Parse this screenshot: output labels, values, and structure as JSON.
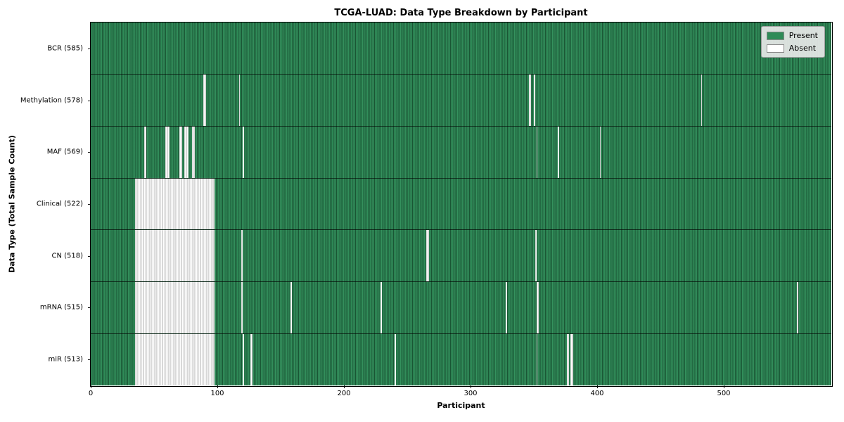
{
  "chart_data": {
    "type": "heatmap",
    "title": "TCGA-LUAD: Data Type Breakdown by Participant",
    "xlabel": "Participant",
    "ylabel": "Data Type (Total Sample Count)",
    "n_participants": 585,
    "x_ticks": [
      0,
      100,
      200,
      300,
      400,
      500
    ],
    "colors": {
      "present": "#2e8b57",
      "absent": "#ffffff"
    },
    "legend": [
      {
        "label": "Present",
        "color": "#2e8b57"
      },
      {
        "label": "Absent",
        "color": "#ffffff"
      }
    ],
    "legend_position": "upper right",
    "rows": [
      {
        "label": "BCR (585)",
        "data_type": "BCR",
        "count": 585,
        "absent_runs": []
      },
      {
        "label": "Methylation (578)",
        "data_type": "Methylation",
        "count": 578,
        "absent_runs": [
          [
            89,
            2
          ],
          [
            117,
            1
          ],
          [
            346,
            2
          ],
          [
            350,
            1
          ],
          [
            482,
            1
          ]
        ]
      },
      {
        "label": "MAF (569)",
        "data_type": "MAF",
        "count": 569,
        "absent_runs": [
          [
            42,
            2
          ],
          [
            59,
            3
          ],
          [
            70,
            2
          ],
          [
            74,
            3
          ],
          [
            80,
            2
          ],
          [
            120,
            1
          ],
          [
            352,
            1
          ],
          [
            369,
            1
          ],
          [
            402,
            1
          ]
        ]
      },
      {
        "label": "Clinical (522)",
        "data_type": "Clinical",
        "count": 522,
        "absent_runs": [
          [
            35,
            63
          ]
        ]
      },
      {
        "label": "CN (518)",
        "data_type": "CN",
        "count": 518,
        "absent_runs": [
          [
            35,
            63
          ],
          [
            119,
            1
          ],
          [
            265,
            2
          ],
          [
            351,
            1
          ]
        ]
      },
      {
        "label": "mRNA (515)",
        "data_type": "mRNA",
        "count": 515,
        "absent_runs": [
          [
            35,
            63
          ],
          [
            119,
            1
          ],
          [
            158,
            1
          ],
          [
            229,
            1
          ],
          [
            328,
            1
          ],
          [
            352,
            2
          ],
          [
            558,
            1
          ]
        ]
      },
      {
        "label": "miR (513)",
        "data_type": "miR",
        "count": 513,
        "absent_runs": [
          [
            35,
            63
          ],
          [
            120,
            1
          ],
          [
            126,
            2
          ],
          [
            240,
            1
          ],
          [
            352,
            1
          ],
          [
            376,
            2
          ],
          [
            379,
            2
          ]
        ]
      }
    ]
  }
}
